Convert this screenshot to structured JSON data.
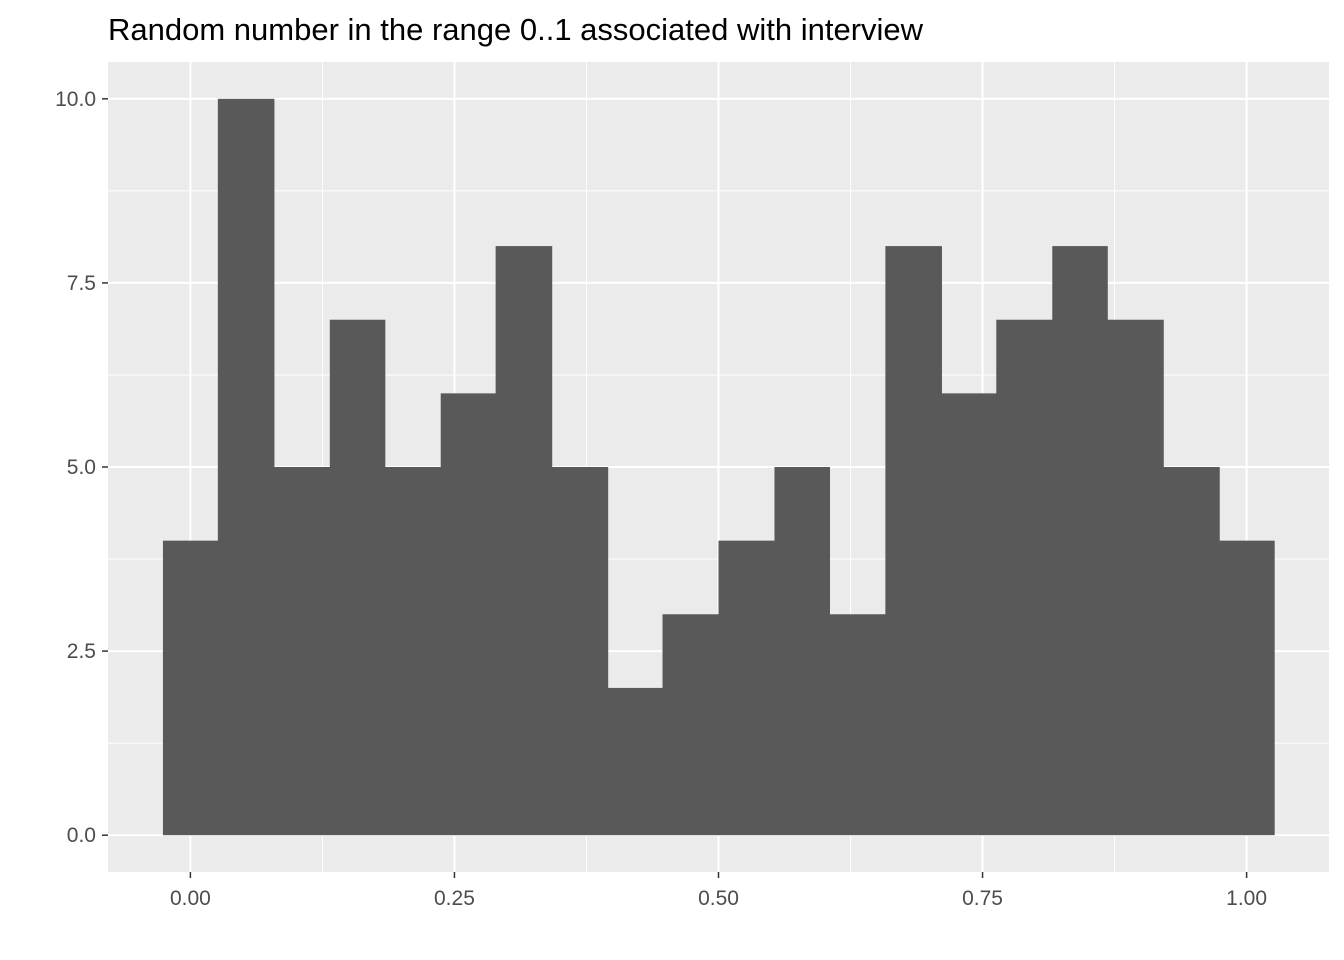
{
  "chart_data": {
    "type": "bar",
    "title": "Random number in the range 0..1 associated with interview",
    "xlabel": "",
    "ylabel": "",
    "bin_width": 0.0526,
    "bins": [
      {
        "x0": -0.026,
        "x1": 0.026,
        "count": 4
      },
      {
        "x0": 0.026,
        "x1": 0.079,
        "count": 10
      },
      {
        "x0": 0.079,
        "x1": 0.132,
        "count": 5
      },
      {
        "x0": 0.132,
        "x1": 0.184,
        "count": 7
      },
      {
        "x0": 0.184,
        "x1": 0.237,
        "count": 5
      },
      {
        "x0": 0.237,
        "x1": 0.289,
        "count": 6
      },
      {
        "x0": 0.289,
        "x1": 0.342,
        "count": 8
      },
      {
        "x0": 0.342,
        "x1": 0.395,
        "count": 5
      },
      {
        "x0": 0.395,
        "x1": 0.447,
        "count": 2
      },
      {
        "x0": 0.447,
        "x1": 0.5,
        "count": 3
      },
      {
        "x0": 0.5,
        "x1": 0.553,
        "count": 4
      },
      {
        "x0": 0.553,
        "x1": 0.605,
        "count": 5
      },
      {
        "x0": 0.605,
        "x1": 0.658,
        "count": 3
      },
      {
        "x0": 0.658,
        "x1": 0.711,
        "count": 8
      },
      {
        "x0": 0.711,
        "x1": 0.763,
        "count": 6
      },
      {
        "x0": 0.763,
        "x1": 0.816,
        "count": 7
      },
      {
        "x0": 0.816,
        "x1": 0.868,
        "count": 8
      },
      {
        "x0": 0.868,
        "x1": 0.921,
        "count": 7
      },
      {
        "x0": 0.921,
        "x1": 0.974,
        "count": 5
      },
      {
        "x0": 0.974,
        "x1": 1.026,
        "count": 4
      }
    ],
    "xlim": [
      -0.078,
      1.078
    ],
    "ylim": [
      -0.5,
      10.5
    ],
    "x_ticks": [
      {
        "value": 0,
        "label": "0.00"
      },
      {
        "value": 0.25,
        "label": "0.25"
      },
      {
        "value": 0.5,
        "label": "0.50"
      },
      {
        "value": 0.75,
        "label": "0.75"
      },
      {
        "value": 1,
        "label": "1.00"
      }
    ],
    "y_ticks": [
      {
        "value": 0,
        "label": "0.0"
      },
      {
        "value": 2.5,
        "label": "2.5"
      },
      {
        "value": 5,
        "label": "5.0"
      },
      {
        "value": 7.5,
        "label": "7.5"
      },
      {
        "value": 10,
        "label": "10.0"
      }
    ],
    "grid": true,
    "legend": "none",
    "colors": {
      "panel_background": "#ebebeb",
      "grid": "#ffffff",
      "bar_fill": "#595959",
      "tick_label": "#4d4d4d",
      "tick_mark": "#333333"
    }
  }
}
